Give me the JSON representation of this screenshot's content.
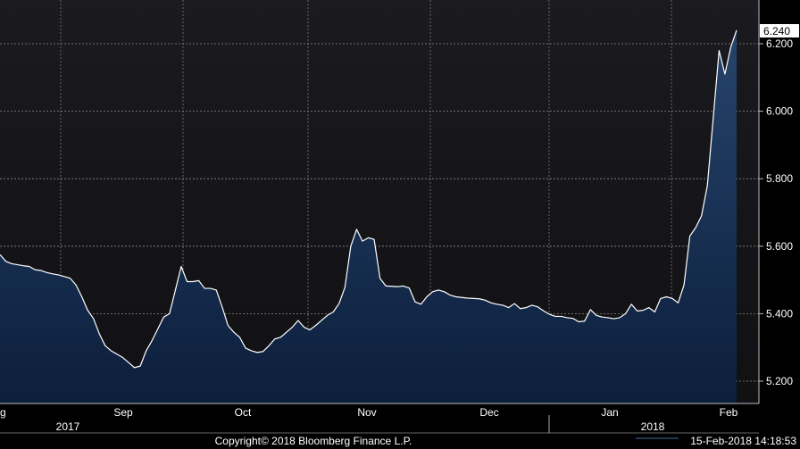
{
  "chart_data": {
    "type": "area",
    "title": "",
    "xlabel": "",
    "ylabel": "",
    "ylim": [
      5.15,
      6.31
    ],
    "y_ticks": [
      "5.200",
      "5.400",
      "5.600",
      "5.800",
      "6.000",
      "6.200"
    ],
    "y_tick_values": [
      5.2,
      5.4,
      5.6,
      5.8,
      6.0,
      6.2
    ],
    "x_tick_labels": [
      "g",
      "Sep",
      "Oct",
      "Nov",
      "Dec",
      "Jan",
      "Feb"
    ],
    "year_labels": [
      "2017",
      "2018"
    ],
    "last_value_label": "6.240",
    "grid": true,
    "series": [
      {
        "values": [
          5.575,
          5.555,
          5.548,
          5.545,
          5.542,
          5.54,
          5.53,
          5.528,
          5.522,
          5.518,
          5.515,
          5.51,
          5.505,
          5.485,
          5.45,
          5.41,
          5.385,
          5.34,
          5.305,
          5.29,
          5.28,
          5.27,
          5.255,
          5.24,
          5.245,
          5.29,
          5.32,
          5.355,
          5.39,
          5.4,
          5.47,
          5.54,
          5.495,
          5.495,
          5.498,
          5.475,
          5.475,
          5.47,
          5.42,
          5.365,
          5.345,
          5.33,
          5.298,
          5.29,
          5.285,
          5.288,
          5.305,
          5.325,
          5.33,
          5.345,
          5.36,
          5.38,
          5.36,
          5.352,
          5.365,
          5.38,
          5.395,
          5.405,
          5.43,
          5.478,
          5.6,
          5.65,
          5.615,
          5.625,
          5.62,
          5.505,
          5.482,
          5.481,
          5.48,
          5.482,
          5.476,
          5.435,
          5.428,
          5.45,
          5.465,
          5.47,
          5.465,
          5.455,
          5.45,
          5.448,
          5.446,
          5.445,
          5.444,
          5.44,
          5.432,
          5.428,
          5.425,
          5.418,
          5.43,
          5.415,
          5.418,
          5.425,
          5.42,
          5.408,
          5.398,
          5.392,
          5.392,
          5.388,
          5.386,
          5.376,
          5.378,
          5.412,
          5.395,
          5.39,
          5.388,
          5.385,
          5.388,
          5.4,
          5.428,
          5.408,
          5.41,
          5.418,
          5.405,
          5.445,
          5.45,
          5.445,
          5.432,
          5.485,
          5.63,
          5.655,
          5.69,
          5.78,
          5.98,
          6.18,
          6.11,
          6.19,
          6.24
        ]
      }
    ]
  },
  "footer": {
    "copyright": "Copyright© 2018 Bloomberg Finance L.P.",
    "timestamp": "15-Feb-2018 14:18:53"
  },
  "colors": {
    "background": "#000000",
    "plot_background": "#141218",
    "area_fill_top": "#213a5e",
    "area_fill_bottom": "#0d2040",
    "line": "#ffffff",
    "grid": "#7a7a7a"
  }
}
